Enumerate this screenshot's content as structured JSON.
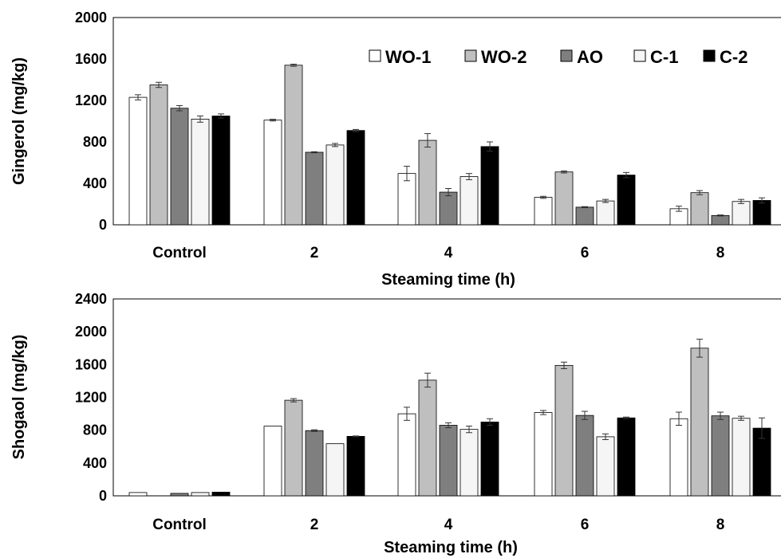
{
  "chart_data": [
    {
      "type": "bar",
      "categories": [
        "Control",
        "2",
        "4",
        "6",
        "8"
      ],
      "xlabel": "Steaming time (h)",
      "ylabel": "Gingerol (mg/kg)",
      "ylim": [
        0,
        2000
      ],
      "yticks": [
        "0",
        "400",
        "800",
        "1200",
        "1600",
        "2000"
      ],
      "grid": false,
      "legend_position": "top-right",
      "series": [
        {
          "name": "WO-1",
          "color": "#ffffff",
          "values": [
            1230,
            1010,
            495,
            265,
            155
          ],
          "errors": [
            25,
            8,
            70,
            10,
            25
          ]
        },
        {
          "name": "WO-2",
          "color": "#bfbfbf",
          "values": [
            1350,
            1540,
            815,
            510,
            310
          ],
          "errors": [
            25,
            10,
            65,
            10,
            20
          ]
        },
        {
          "name": "AO",
          "color": "#7f7f7f",
          "values": [
            1125,
            700,
            315,
            170,
            90
          ],
          "errors": [
            25,
            5,
            35,
            5,
            5
          ]
        },
        {
          "name": "C-1",
          "color": "#f5f5f5",
          "values": [
            1020,
            770,
            465,
            230,
            225
          ],
          "errors": [
            30,
            15,
            30,
            15,
            20
          ]
        },
        {
          "name": "C-2",
          "color": "#000000",
          "values": [
            1050,
            910,
            755,
            480,
            235
          ],
          "errors": [
            20,
            10,
            45,
            25,
            25
          ]
        }
      ]
    },
    {
      "type": "bar",
      "categories": [
        "Control",
        "2",
        "4",
        "6",
        "8"
      ],
      "xlabel": "Steaming time (h)",
      "ylabel": "Shogaol (mg/kg)",
      "ylim": [
        0,
        2400
      ],
      "yticks": [
        "0",
        "400",
        "800",
        "1200",
        "1600",
        "2000",
        "2400"
      ],
      "grid": false,
      "series": [
        {
          "name": "WO-1",
          "color": "#ffffff",
          "values": [
            40,
            850,
            1000,
            1015,
            940
          ],
          "errors": [
            0,
            0,
            80,
            25,
            80
          ]
        },
        {
          "name": "WO-2",
          "color": "#bfbfbf",
          "values": [
            0,
            1165,
            1410,
            1590,
            1800
          ],
          "errors": [
            0,
            20,
            85,
            40,
            110
          ]
        },
        {
          "name": "AO",
          "color": "#7f7f7f",
          "values": [
            30,
            795,
            860,
            980,
            975
          ],
          "errors": [
            0,
            10,
            30,
            50,
            45
          ]
        },
        {
          "name": "C-1",
          "color": "#f5f5f5",
          "values": [
            40,
            635,
            810,
            720,
            945
          ],
          "errors": [
            0,
            0,
            40,
            35,
            25
          ]
        },
        {
          "name": "C-2",
          "color": "#000000",
          "values": [
            45,
            725,
            900,
            950,
            825
          ],
          "errors": [
            0,
            5,
            40,
            10,
            125
          ]
        }
      ]
    }
  ]
}
